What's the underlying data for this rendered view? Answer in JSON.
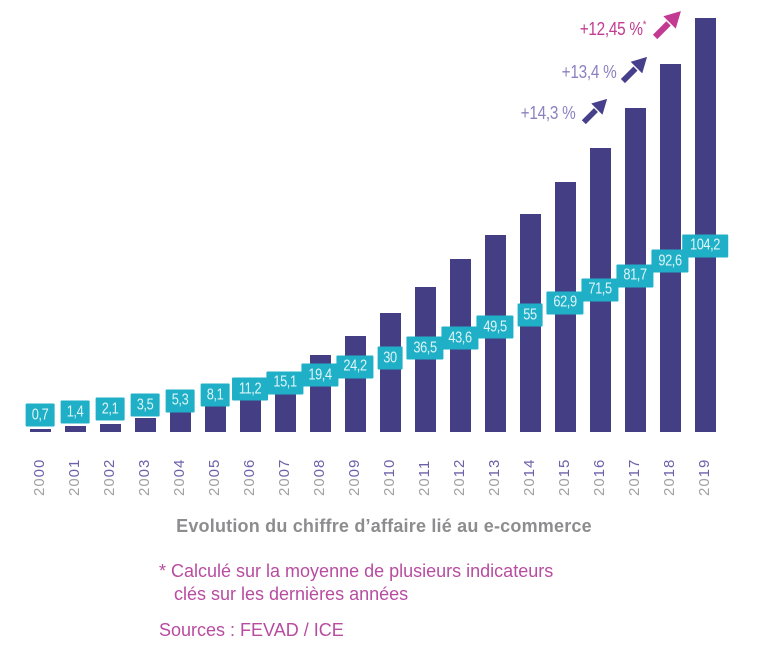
{
  "chart_data": {
    "type": "bar",
    "title": "Evolution du chiffre d’affaire lié au e-commerce",
    "categories": [
      "2000",
      "2001",
      "2002",
      "2003",
      "2004",
      "2005",
      "2006",
      "2007",
      "2008",
      "2009",
      "2010",
      "2011",
      "2012",
      "2013",
      "2014",
      "2015",
      "2016",
      "2017",
      "2018",
      "2019"
    ],
    "values": [
      0.7,
      1.4,
      2.1,
      3.5,
      5.3,
      8.1,
      11.2,
      15.1,
      19.4,
      24.2,
      30,
      36.5,
      43.6,
      49.5,
      55,
      62.9,
      71.5,
      81.7,
      92.6,
      104.2
    ],
    "value_labels": [
      "0,7",
      "1,4",
      "2,1",
      "3,5",
      "5,3",
      "8,1",
      "11,2",
      "15,1",
      "19,4",
      "24,2",
      "30",
      "36,5",
      "43,6",
      "49,5",
      "55",
      "62,9",
      "71,5",
      "81,7",
      "92,6",
      "104,2"
    ],
    "xlabel": "",
    "ylabel": "",
    "ylim": [
      0,
      110
    ],
    "grid": false,
    "legend": false,
    "annotations": [
      {
        "label": "+14,3 %",
        "sup": "",
        "color": "purple"
      },
      {
        "label": "+13,4 %",
        "sup": "",
        "color": "purple"
      },
      {
        "label": "+12,45 %",
        "sup": "*",
        "color": "pink"
      }
    ]
  },
  "footnote": {
    "line1": "* Calculé sur la moyenne de plusieurs indicateurs",
    "line2": "clés sur les dernières années"
  },
  "sources": "Sources : FEVAD / ICE",
  "colors": {
    "bar": "#443E85",
    "badge": "#1FB0C7",
    "badge_text": "#DFF4F8",
    "year_prefix": "#A1A1A4",
    "year_suffix": "#6B62AA",
    "annotation_purple": "#8A82C0",
    "arrow_purple": "#463F8B",
    "annotation_pink": "#C23A92",
    "title": "#8D8D8F",
    "footnote": "#B84CA0"
  }
}
